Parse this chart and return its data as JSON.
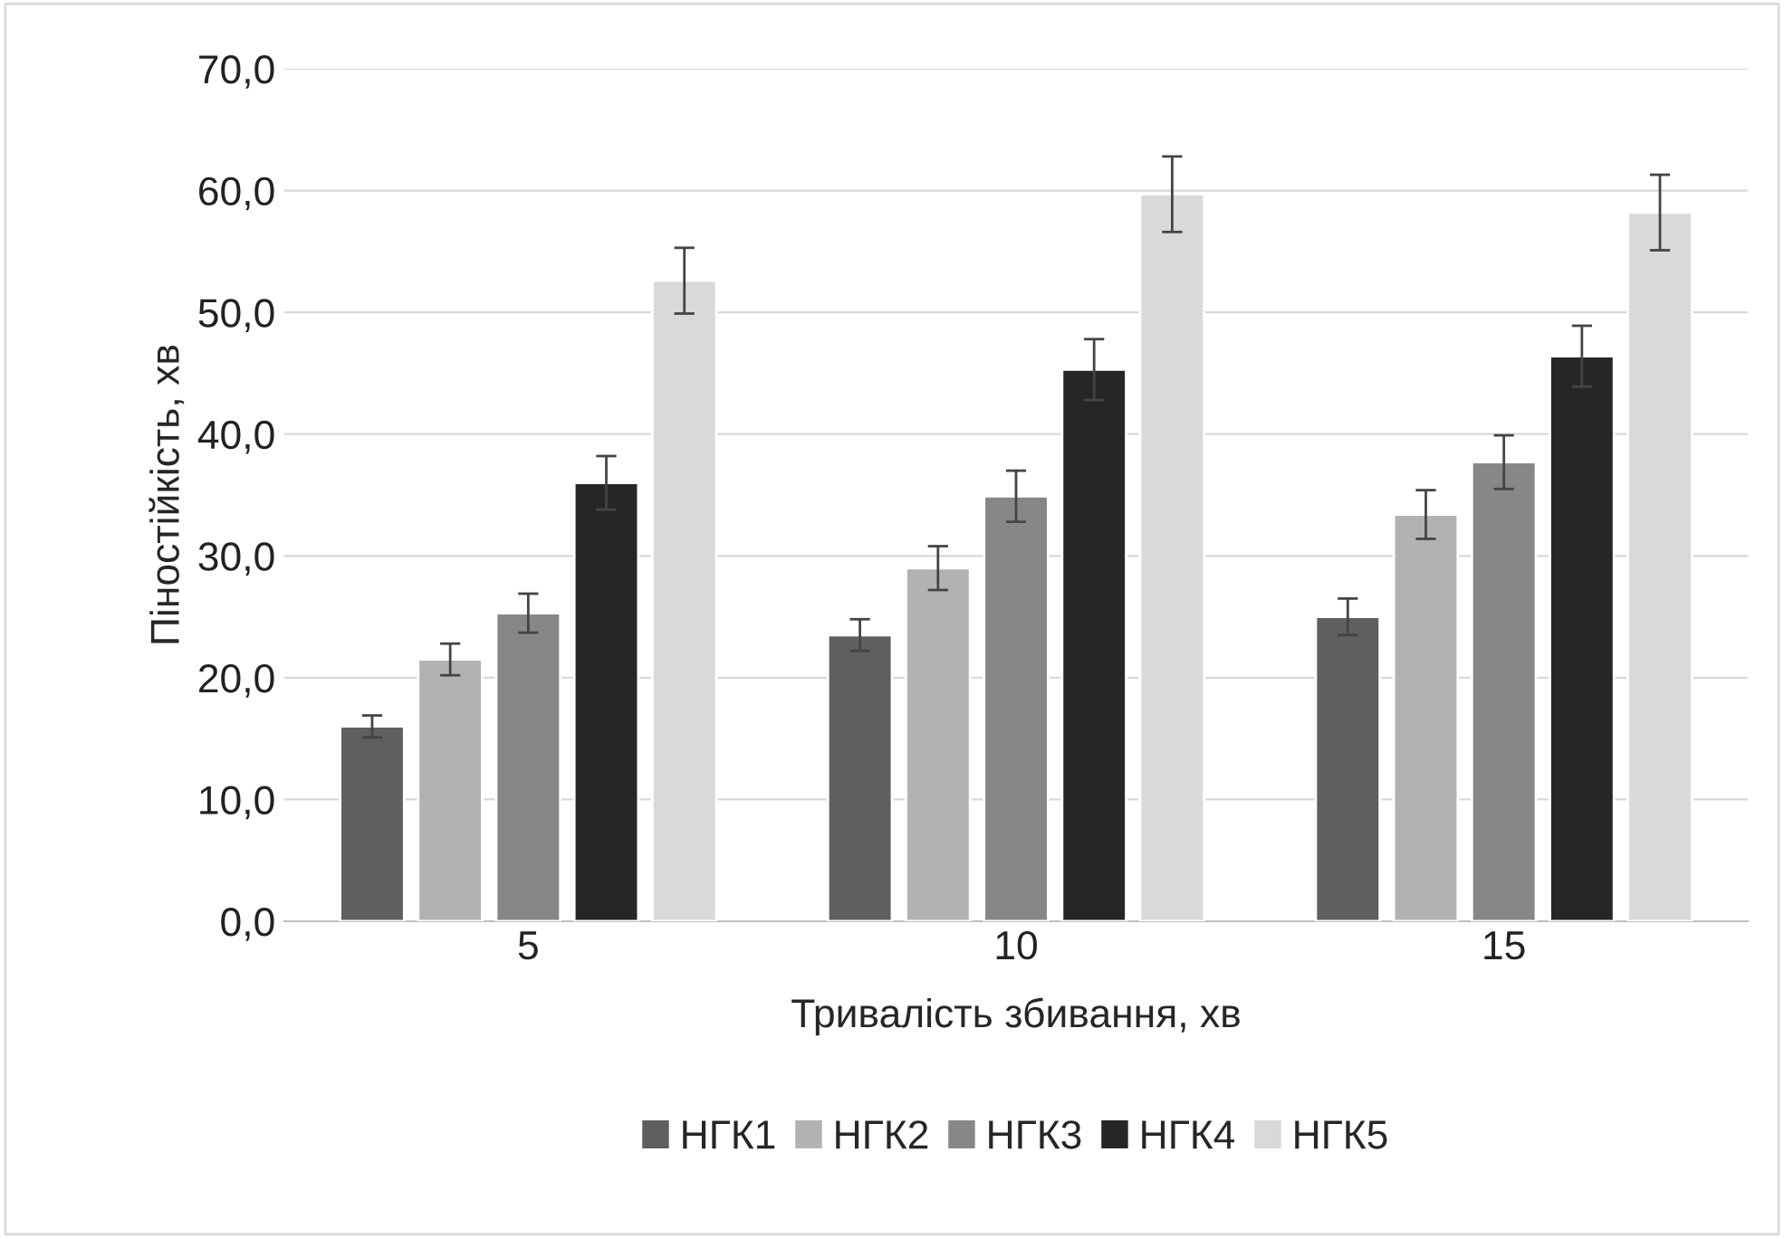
{
  "chart_data": {
    "type": "bar",
    "xlabel": "Тривалість збивання, хв",
    "ylabel": "Піностійкість, хв",
    "categories": [
      "5",
      "10",
      "15"
    ],
    "series": [
      {
        "name": "НГК1",
        "color": "#5f5f5f",
        "values": [
          16.0,
          23.5,
          25.0
        ],
        "errors": [
          0.9,
          1.3,
          1.5
        ]
      },
      {
        "name": "НГК2",
        "color": "#b2b2b2",
        "values": [
          21.5,
          29.0,
          33.4
        ],
        "errors": [
          1.3,
          1.8,
          2.0
        ]
      },
      {
        "name": "НГК3",
        "color": "#878787",
        "values": [
          25.3,
          34.9,
          37.7
        ],
        "errors": [
          1.6,
          2.1,
          2.2
        ]
      },
      {
        "name": "НГК4",
        "color": "#262626",
        "values": [
          36.0,
          45.3,
          46.4
        ],
        "errors": [
          2.2,
          2.5,
          2.5
        ]
      },
      {
        "name": "НГК5",
        "color": "#d9d9d9",
        "values": [
          52.6,
          59.7,
          58.2
        ],
        "errors": [
          2.7,
          3.1,
          3.1
        ]
      }
    ],
    "ylim": [
      0,
      70
    ],
    "yticks": [
      {
        "value": 0,
        "label": "0,0"
      },
      {
        "value": 10,
        "label": "10,0"
      },
      {
        "value": 20,
        "label": "20,0"
      },
      {
        "value": 30,
        "label": "30,0"
      },
      {
        "value": 40,
        "label": "40,0"
      },
      {
        "value": 50,
        "label": "50,0"
      },
      {
        "value": 60,
        "label": "60,0"
      },
      {
        "value": 70,
        "label": "70,0"
      }
    ],
    "grid": "y",
    "legend": "bottom"
  }
}
